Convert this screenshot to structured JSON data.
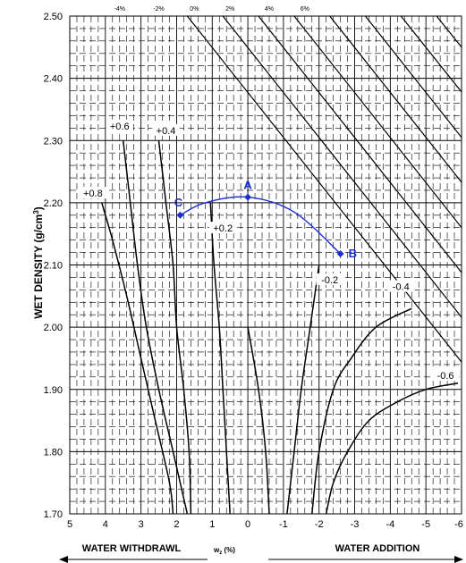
{
  "chart_data": {
    "type": "line",
    "xlabel": "w",
    "xlabel_sub": "z",
    "xlabel_suffix": " (%)",
    "ylabel": "WET DENSITY (g/cm",
    "ylabel_sup": "3",
    "ylabel_suffix": ")",
    "xlim": [
      5,
      -6
    ],
    "ylim": [
      1.7,
      2.5
    ],
    "x_ticks": [
      "5",
      "4",
      "3",
      "2",
      "1",
      "0",
      "-1",
      "-2",
      "-3",
      "-4",
      "-5",
      "-6"
    ],
    "y_ticks": [
      "1.70",
      "1.80",
      "1.90",
      "2.00",
      "2.10",
      "2.20",
      "2.30",
      "2.40",
      "2.50"
    ],
    "top_ticks": [
      {
        "label": "-4%",
        "x": 3.6
      },
      {
        "label": "-2%",
        "x": 2.5
      },
      {
        "label": "0%",
        "x": 1.5
      },
      {
        "label": "2%",
        "x": 0.5
      },
      {
        "label": "4%",
        "x": -0.6
      },
      {
        "label": "6%",
        "x": -1.6
      }
    ],
    "water_withdrawal_label": "WATER WITHDRAWL",
    "water_addition_label": "WATER ADDITION",
    "grid": true,
    "saturation_lines": [
      {
        "points": [
          [
            1.7,
            2.5
          ],
          [
            -6.0,
            1.944
          ]
        ]
      },
      {
        "points": [
          [
            0.7,
            2.5
          ],
          [
            -6.0,
            2.016
          ]
        ]
      },
      {
        "points": [
          [
            -0.3,
            2.5
          ],
          [
            -6.0,
            2.088
          ]
        ]
      },
      {
        "points": [
          [
            -1.3,
            2.5
          ],
          [
            -6.0,
            2.16
          ]
        ]
      },
      {
        "points": [
          [
            -2.3,
            2.5
          ],
          [
            -6.0,
            2.233
          ]
        ]
      },
      {
        "points": [
          [
            -3.3,
            2.5
          ],
          [
            -6.0,
            2.305
          ]
        ]
      },
      {
        "points": [
          [
            -4.3,
            2.5
          ],
          [
            -6.0,
            2.378
          ]
        ]
      },
      {
        "points": [
          [
            -5.3,
            2.5
          ],
          [
            -6.0,
            2.45
          ]
        ]
      }
    ],
    "curves": [
      {
        "label": "+0.8",
        "label_at": [
          4.35,
          2.214
        ],
        "points": [
          [
            4.1,
            2.2
          ],
          [
            3.8,
            2.14
          ],
          [
            3.4,
            2.05
          ],
          [
            3.0,
            1.95
          ],
          [
            2.6,
            1.85
          ],
          [
            2.2,
            1.75
          ],
          [
            2.1,
            1.7
          ]
        ]
      },
      {
        "label": "+0.6",
        "label_at": [
          3.6,
          2.322
        ],
        "points": [
          [
            3.5,
            2.3
          ],
          [
            3.3,
            2.2
          ],
          [
            3.1,
            2.1
          ],
          [
            2.85,
            2.0
          ],
          [
            2.5,
            1.9
          ],
          [
            2.1,
            1.8
          ],
          [
            1.7,
            1.7
          ]
        ]
      },
      {
        "label": "+0.4",
        "label_at": [
          2.3,
          2.315
        ],
        "points": [
          [
            2.5,
            2.3
          ],
          [
            2.3,
            2.2
          ],
          [
            2.1,
            2.1
          ],
          [
            2.0,
            2.0
          ],
          [
            1.8,
            1.9
          ],
          [
            1.65,
            1.8
          ],
          [
            1.6,
            1.7
          ]
        ]
      },
      {
        "label": "+0.2",
        "label_at": [
          0.7,
          2.158
        ],
        "points": [
          [
            1.05,
            2.2
          ],
          [
            0.95,
            2.1
          ],
          [
            0.8,
            2.0
          ],
          [
            0.7,
            1.9
          ],
          [
            0.6,
            1.8
          ],
          [
            0.5,
            1.7
          ]
        ]
      },
      {
        "label": "",
        "label_at": null,
        "points": [
          [
            0.0,
            2.0
          ],
          [
            -0.3,
            1.9
          ],
          [
            -0.5,
            1.8
          ],
          [
            -0.6,
            1.7
          ]
        ]
      },
      {
        "label": "-0.2",
        "label_at": [
          -2.3,
          2.075
        ],
        "points": [
          [
            -2.0,
            2.1
          ],
          [
            -1.75,
            2.0
          ],
          [
            -1.5,
            1.9
          ],
          [
            -1.3,
            1.8
          ],
          [
            -1.1,
            1.7
          ]
        ]
      },
      {
        "label": "-0.4",
        "label_at": [
          -4.3,
          2.064
        ],
        "points": [
          [
            -4.6,
            2.03
          ],
          [
            -3.6,
            2.0
          ],
          [
            -2.9,
            1.95
          ],
          [
            -2.4,
            1.9
          ],
          [
            -2.0,
            1.8
          ],
          [
            -1.8,
            1.7
          ]
        ]
      },
      {
        "label": "-0.6",
        "label_at": [
          -5.55,
          1.921
        ],
        "points": [
          [
            -5.9,
            1.91
          ],
          [
            -5.0,
            1.9
          ],
          [
            -4.2,
            1.88
          ],
          [
            -3.4,
            1.85
          ],
          [
            -2.8,
            1.8
          ],
          [
            -2.4,
            1.75
          ],
          [
            -2.2,
            1.7
          ]
        ]
      }
    ],
    "series": [
      {
        "name": "",
        "color": "#1a2fd0",
        "points": [
          {
            "label": "C",
            "x": 1.9,
            "y": 2.18
          },
          {
            "label": "",
            "x": 1.2,
            "y": 2.2
          },
          {
            "label": "A",
            "x": 0.0,
            "y": 2.209
          },
          {
            "label": "",
            "x": -1.3,
            "y": 2.185
          },
          {
            "label": "B",
            "x": -2.6,
            "y": 2.118
          }
        ]
      }
    ]
  }
}
